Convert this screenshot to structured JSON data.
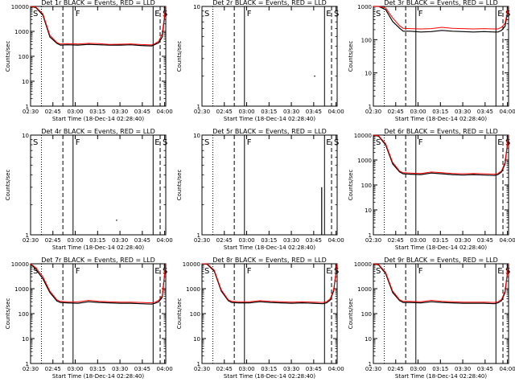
{
  "common": {
    "xlabel": "Start Time (18-Dec-14 02:28:40)",
    "ylabel": "Counts/sec",
    "x_ticks": [
      "02:30",
      "02:45",
      "03:00",
      "03:15",
      "03:30",
      "03:45",
      "04:00"
    ],
    "y_ticks_4": [
      "1",
      "10",
      "100",
      "1000",
      "10000"
    ],
    "y_ticks_3": [
      "1",
      "10",
      "100",
      "1000"
    ],
    "markers": {
      "S": "S",
      "F": "F",
      "E": "E"
    },
    "colors": {
      "events": "#000000",
      "lld": "#ff0000",
      "axes": "#000000"
    }
  },
  "chart_data": [
    {
      "type": "line",
      "title": "Det 1r BLACK = Events, RED = LLD",
      "yscale": "log",
      "xlim": [
        150,
        4000
      ],
      "ylim": [
        1,
        10000
      ],
      "y_decades": 4,
      "series": [
        {
          "name": "Events",
          "color": "#000000",
          "x": [
            150,
            300,
            500,
            700,
            900,
            1000,
            1200,
            1500,
            1800,
            2100,
            2400,
            2700,
            3000,
            3300,
            3600,
            3700,
            3800,
            3900,
            4000
          ],
          "y": [
            10000,
            9000,
            4500,
            600,
            330,
            280,
            290,
            280,
            300,
            290,
            280,
            280,
            290,
            270,
            260,
            300,
            350,
            600,
            10000
          ]
        },
        {
          "name": "LLD",
          "color": "#ff0000",
          "x": [
            150,
            300,
            500,
            700,
            900,
            1000,
            1200,
            1500,
            1800,
            2100,
            2400,
            2700,
            3000,
            3300,
            3600,
            3700,
            3800,
            3900,
            4000
          ],
          "y": [
            10000,
            9500,
            5000,
            700,
            360,
            310,
            320,
            310,
            330,
            320,
            300,
            305,
            315,
            295,
            285,
            330,
            400,
            800,
            10000
          ]
        }
      ]
    },
    {
      "type": "line",
      "title": "Det 2r BLACK = Events, RED = LLD",
      "yscale": "log",
      "xlim": [
        150,
        4000
      ],
      "ylim": [
        1,
        10
      ],
      "y_decades": 1,
      "series": [
        {
          "name": "Events",
          "color": "#000000",
          "x": [
            3360
          ],
          "y": [
            2
          ]
        }
      ]
    },
    {
      "type": "line",
      "title": "Det 3r BLACK = Events, RED = LLD",
      "yscale": "log",
      "xlim": [
        150,
        4000
      ],
      "ylim": [
        1,
        1000
      ],
      "y_decades": 3,
      "series": [
        {
          "name": "Events",
          "color": "#000000",
          "x": [
            150,
            300,
            500,
            700,
            900,
            1000,
            1200,
            1500,
            1800,
            2100,
            2400,
            2700,
            3000,
            3300,
            3600,
            3700,
            3800,
            3900,
            4000
          ],
          "y": [
            1000,
            1000,
            800,
            350,
            220,
            180,
            180,
            170,
            175,
            190,
            180,
            175,
            170,
            175,
            170,
            170,
            190,
            250,
            1000
          ]
        },
        {
          "name": "LLD",
          "color": "#ff0000",
          "x": [
            150,
            300,
            500,
            700,
            900,
            1000,
            1200,
            1500,
            1800,
            2100,
            2400,
            2700,
            3000,
            3300,
            3600,
            3700,
            3800,
            3900,
            4000
          ],
          "y": [
            1000,
            1000,
            900,
            450,
            260,
            220,
            215,
            210,
            215,
            235,
            220,
            215,
            210,
            215,
            210,
            210,
            235,
            310,
            1000
          ]
        }
      ]
    },
    {
      "type": "line",
      "title": "Det 4r BLACK = Events, RED = LLD",
      "yscale": "log",
      "xlim": [
        150,
        4000
      ],
      "ylim": [
        1,
        10
      ],
      "y_decades": 1,
      "series": [
        {
          "name": "Events",
          "color": "#000000",
          "x": [
            2600
          ],
          "y": [
            1.4
          ]
        }
      ]
    },
    {
      "type": "line",
      "title": "Det 5r BLACK = Events, RED = LLD",
      "yscale": "log",
      "xlim": [
        150,
        4000
      ],
      "ylim": [
        1,
        10
      ],
      "y_decades": 1,
      "series": [
        {
          "name": "Events",
          "color": "#000000",
          "x": [
            3560,
            3560
          ],
          "y": [
            1,
            3
          ]
        }
      ]
    },
    {
      "type": "line",
      "title": "Det 6r BLACK = Events, RED = LLD",
      "yscale": "log",
      "xlim": [
        150,
        4000
      ],
      "ylim": [
        1,
        10000
      ],
      "y_decades": 4,
      "series": [
        {
          "name": "Events",
          "color": "#000000",
          "x": [
            150,
            300,
            500,
            700,
            900,
            1000,
            1200,
            1500,
            1800,
            2100,
            2400,
            2700,
            3000,
            3300,
            3600,
            3700,
            3800,
            3900,
            4000
          ],
          "y": [
            10000,
            9000,
            4000,
            700,
            330,
            280,
            270,
            260,
            300,
            280,
            260,
            250,
            260,
            250,
            240,
            260,
            330,
            700,
            10000
          ]
        },
        {
          "name": "LLD",
          "color": "#ff0000",
          "x": [
            150,
            300,
            500,
            700,
            900,
            1000,
            1200,
            1500,
            1800,
            2100,
            2400,
            2700,
            3000,
            3300,
            3600,
            3700,
            3800,
            3900,
            4000
          ],
          "y": [
            10000,
            9500,
            4500,
            800,
            360,
            310,
            300,
            290,
            330,
            310,
            290,
            280,
            290,
            280,
            270,
            290,
            370,
            800,
            10000
          ]
        }
      ]
    },
    {
      "type": "line",
      "title": "Det 7r BLACK = Events, RED = LLD",
      "yscale": "log",
      "xlim": [
        150,
        4000
      ],
      "ylim": [
        1,
        10000
      ],
      "y_decades": 4,
      "series": [
        {
          "name": "Events",
          "color": "#000000",
          "x": [
            150,
            300,
            500,
            700,
            900,
            1000,
            1200,
            1500,
            1800,
            2100,
            2400,
            2700,
            3000,
            3300,
            3600,
            3700,
            3800,
            3900,
            4000
          ],
          "y": [
            10000,
            6000,
            2500,
            700,
            320,
            280,
            270,
            260,
            300,
            280,
            270,
            260,
            260,
            250,
            240,
            260,
            300,
            450,
            10000
          ]
        },
        {
          "name": "LLD",
          "color": "#ff0000",
          "x": [
            150,
            300,
            500,
            700,
            900,
            1000,
            1200,
            1500,
            1800,
            2100,
            2400,
            2700,
            3000,
            3300,
            3600,
            3700,
            3800,
            3900,
            4000
          ],
          "y": [
            10000,
            7000,
            3000,
            800,
            360,
            310,
            300,
            295,
            340,
            310,
            300,
            290,
            290,
            280,
            270,
            290,
            340,
            520,
            10000
          ]
        }
      ]
    },
    {
      "type": "line",
      "title": "Det 8r BLACK = Events, RED = LLD",
      "yscale": "log",
      "xlim": [
        150,
        4000
      ],
      "ylim": [
        1,
        10000
      ],
      "y_decades": 4,
      "series": [
        {
          "name": "Events",
          "color": "#000000",
          "x": [
            150,
            300,
            500,
            700,
            900,
            1000,
            1200,
            1500,
            1800,
            2100,
            2400,
            2700,
            3000,
            3300,
            3600,
            3700,
            3800,
            3900,
            4000
          ],
          "y": [
            10000,
            9500,
            5000,
            800,
            330,
            280,
            270,
            270,
            300,
            280,
            270,
            260,
            270,
            260,
            250,
            270,
            350,
            800,
            10000
          ]
        },
        {
          "name": "LLD",
          "color": "#ff0000",
          "x": [
            150,
            300,
            500,
            700,
            900,
            1000,
            1200,
            1500,
            1800,
            2100,
            2400,
            2700,
            3000,
            3300,
            3600,
            3700,
            3800,
            3900,
            4000
          ],
          "y": [
            10000,
            10000,
            5500,
            900,
            360,
            310,
            300,
            300,
            330,
            310,
            300,
            290,
            300,
            290,
            280,
            300,
            390,
            900,
            10000
          ]
        }
      ]
    },
    {
      "type": "line",
      "title": "Det 9r BLACK = Events, RED = LLD",
      "yscale": "log",
      "xlim": [
        150,
        4000
      ],
      "ylim": [
        1,
        10000
      ],
      "y_decades": 4,
      "series": [
        {
          "name": "Events",
          "color": "#000000",
          "x": [
            150,
            300,
            500,
            700,
            900,
            1000,
            1200,
            1500,
            1800,
            2100,
            2400,
            2700,
            3000,
            3300,
            3600,
            3700,
            3800,
            3900,
            4000
          ],
          "y": [
            10000,
            9000,
            4000,
            700,
            330,
            280,
            280,
            270,
            300,
            280,
            270,
            260,
            260,
            260,
            250,
            270,
            330,
            700,
            10000
          ]
        },
        {
          "name": "LLD",
          "color": "#ff0000",
          "x": [
            150,
            300,
            500,
            700,
            900,
            1000,
            1200,
            1500,
            1800,
            2100,
            2400,
            2700,
            3000,
            3300,
            3600,
            3700,
            3800,
            3900,
            4000
          ],
          "y": [
            10000,
            9500,
            4500,
            800,
            360,
            310,
            310,
            300,
            340,
            310,
            300,
            290,
            290,
            290,
            280,
            300,
            370,
            800,
            10000
          ]
        }
      ]
    }
  ]
}
